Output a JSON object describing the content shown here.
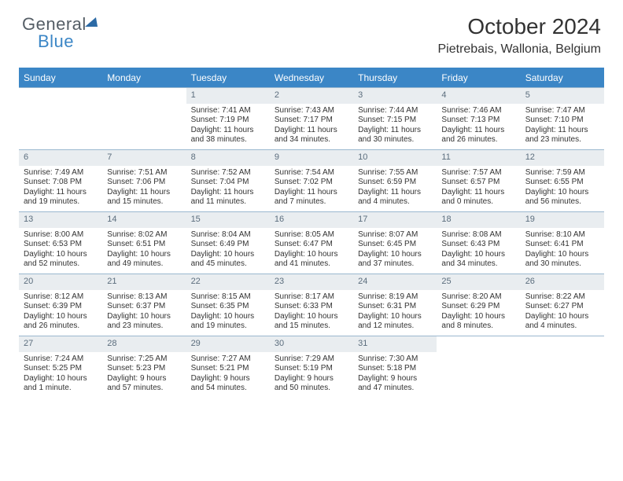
{
  "logo": {
    "text1": "General",
    "text2": "Blue"
  },
  "title": "October 2024",
  "location": "Pietrebais, Wallonia, Belgium",
  "colors": {
    "header_bg": "#3b86c6",
    "daynum_bg": "#e9edf0",
    "daynum_color": "#5b6d7d",
    "week_border": "#9bb8cf",
    "text": "#333333"
  },
  "days_of_week": [
    "Sunday",
    "Monday",
    "Tuesday",
    "Wednesday",
    "Thursday",
    "Friday",
    "Saturday"
  ],
  "weeks": [
    [
      {
        "n": "",
        "sr": "",
        "ss": "",
        "dl": ""
      },
      {
        "n": "",
        "sr": "",
        "ss": "",
        "dl": ""
      },
      {
        "n": "1",
        "sr": "Sunrise: 7:41 AM",
        "ss": "Sunset: 7:19 PM",
        "dl": "Daylight: 11 hours and 38 minutes."
      },
      {
        "n": "2",
        "sr": "Sunrise: 7:43 AM",
        "ss": "Sunset: 7:17 PM",
        "dl": "Daylight: 11 hours and 34 minutes."
      },
      {
        "n": "3",
        "sr": "Sunrise: 7:44 AM",
        "ss": "Sunset: 7:15 PM",
        "dl": "Daylight: 11 hours and 30 minutes."
      },
      {
        "n": "4",
        "sr": "Sunrise: 7:46 AM",
        "ss": "Sunset: 7:13 PM",
        "dl": "Daylight: 11 hours and 26 minutes."
      },
      {
        "n": "5",
        "sr": "Sunrise: 7:47 AM",
        "ss": "Sunset: 7:10 PM",
        "dl": "Daylight: 11 hours and 23 minutes."
      }
    ],
    [
      {
        "n": "6",
        "sr": "Sunrise: 7:49 AM",
        "ss": "Sunset: 7:08 PM",
        "dl": "Daylight: 11 hours and 19 minutes."
      },
      {
        "n": "7",
        "sr": "Sunrise: 7:51 AM",
        "ss": "Sunset: 7:06 PM",
        "dl": "Daylight: 11 hours and 15 minutes."
      },
      {
        "n": "8",
        "sr": "Sunrise: 7:52 AM",
        "ss": "Sunset: 7:04 PM",
        "dl": "Daylight: 11 hours and 11 minutes."
      },
      {
        "n": "9",
        "sr": "Sunrise: 7:54 AM",
        "ss": "Sunset: 7:02 PM",
        "dl": "Daylight: 11 hours and 7 minutes."
      },
      {
        "n": "10",
        "sr": "Sunrise: 7:55 AM",
        "ss": "Sunset: 6:59 PM",
        "dl": "Daylight: 11 hours and 4 minutes."
      },
      {
        "n": "11",
        "sr": "Sunrise: 7:57 AM",
        "ss": "Sunset: 6:57 PM",
        "dl": "Daylight: 11 hours and 0 minutes."
      },
      {
        "n": "12",
        "sr": "Sunrise: 7:59 AM",
        "ss": "Sunset: 6:55 PM",
        "dl": "Daylight: 10 hours and 56 minutes."
      }
    ],
    [
      {
        "n": "13",
        "sr": "Sunrise: 8:00 AM",
        "ss": "Sunset: 6:53 PM",
        "dl": "Daylight: 10 hours and 52 minutes."
      },
      {
        "n": "14",
        "sr": "Sunrise: 8:02 AM",
        "ss": "Sunset: 6:51 PM",
        "dl": "Daylight: 10 hours and 49 minutes."
      },
      {
        "n": "15",
        "sr": "Sunrise: 8:04 AM",
        "ss": "Sunset: 6:49 PM",
        "dl": "Daylight: 10 hours and 45 minutes."
      },
      {
        "n": "16",
        "sr": "Sunrise: 8:05 AM",
        "ss": "Sunset: 6:47 PM",
        "dl": "Daylight: 10 hours and 41 minutes."
      },
      {
        "n": "17",
        "sr": "Sunrise: 8:07 AM",
        "ss": "Sunset: 6:45 PM",
        "dl": "Daylight: 10 hours and 37 minutes."
      },
      {
        "n": "18",
        "sr": "Sunrise: 8:08 AM",
        "ss": "Sunset: 6:43 PM",
        "dl": "Daylight: 10 hours and 34 minutes."
      },
      {
        "n": "19",
        "sr": "Sunrise: 8:10 AM",
        "ss": "Sunset: 6:41 PM",
        "dl": "Daylight: 10 hours and 30 minutes."
      }
    ],
    [
      {
        "n": "20",
        "sr": "Sunrise: 8:12 AM",
        "ss": "Sunset: 6:39 PM",
        "dl": "Daylight: 10 hours and 26 minutes."
      },
      {
        "n": "21",
        "sr": "Sunrise: 8:13 AM",
        "ss": "Sunset: 6:37 PM",
        "dl": "Daylight: 10 hours and 23 minutes."
      },
      {
        "n": "22",
        "sr": "Sunrise: 8:15 AM",
        "ss": "Sunset: 6:35 PM",
        "dl": "Daylight: 10 hours and 19 minutes."
      },
      {
        "n": "23",
        "sr": "Sunrise: 8:17 AM",
        "ss": "Sunset: 6:33 PM",
        "dl": "Daylight: 10 hours and 15 minutes."
      },
      {
        "n": "24",
        "sr": "Sunrise: 8:19 AM",
        "ss": "Sunset: 6:31 PM",
        "dl": "Daylight: 10 hours and 12 minutes."
      },
      {
        "n": "25",
        "sr": "Sunrise: 8:20 AM",
        "ss": "Sunset: 6:29 PM",
        "dl": "Daylight: 10 hours and 8 minutes."
      },
      {
        "n": "26",
        "sr": "Sunrise: 8:22 AM",
        "ss": "Sunset: 6:27 PM",
        "dl": "Daylight: 10 hours and 4 minutes."
      }
    ],
    [
      {
        "n": "27",
        "sr": "Sunrise: 7:24 AM",
        "ss": "Sunset: 5:25 PM",
        "dl": "Daylight: 10 hours and 1 minute."
      },
      {
        "n": "28",
        "sr": "Sunrise: 7:25 AM",
        "ss": "Sunset: 5:23 PM",
        "dl": "Daylight: 9 hours and 57 minutes."
      },
      {
        "n": "29",
        "sr": "Sunrise: 7:27 AM",
        "ss": "Sunset: 5:21 PM",
        "dl": "Daylight: 9 hours and 54 minutes."
      },
      {
        "n": "30",
        "sr": "Sunrise: 7:29 AM",
        "ss": "Sunset: 5:19 PM",
        "dl": "Daylight: 9 hours and 50 minutes."
      },
      {
        "n": "31",
        "sr": "Sunrise: 7:30 AM",
        "ss": "Sunset: 5:18 PM",
        "dl": "Daylight: 9 hours and 47 minutes."
      },
      {
        "n": "",
        "sr": "",
        "ss": "",
        "dl": ""
      },
      {
        "n": "",
        "sr": "",
        "ss": "",
        "dl": ""
      }
    ]
  ]
}
